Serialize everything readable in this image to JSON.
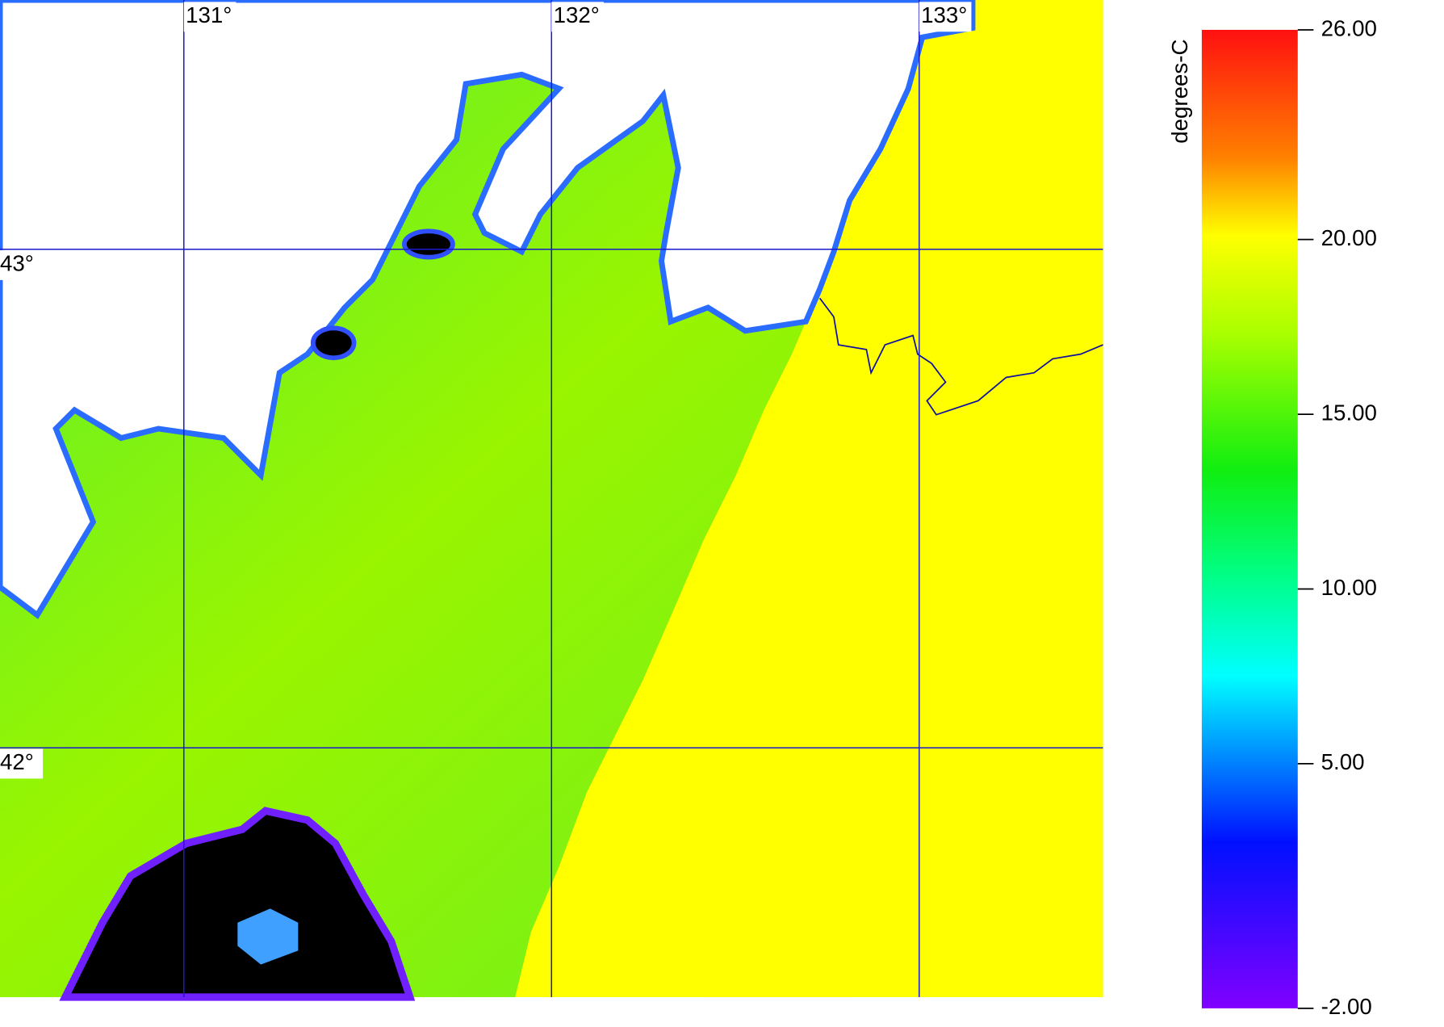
{
  "map": {
    "lonlim": [
      130.5,
      133.5
    ],
    "latlim": [
      41.5,
      43.5
    ],
    "lon_ticks": [
      {
        "value": 131,
        "label": "131°"
      },
      {
        "value": 132,
        "label": "132°"
      },
      {
        "value": 133,
        "label": "133°"
      }
    ],
    "lat_ticks": [
      {
        "value": 43,
        "label": "43°"
      },
      {
        "value": 42,
        "label": "42°"
      }
    ]
  },
  "colorbar": {
    "title": "degrees-C",
    "range": [
      -2,
      26
    ],
    "ticks": [
      {
        "value": 26,
        "label": "26.00"
      },
      {
        "value": 20,
        "label": "20.00"
      },
      {
        "value": 15,
        "label": "15.00"
      },
      {
        "value": 10,
        "label": "10.00"
      },
      {
        "value": 5,
        "label": "5.00"
      },
      {
        "value": -2,
        "label": "-2.00"
      }
    ]
  }
}
